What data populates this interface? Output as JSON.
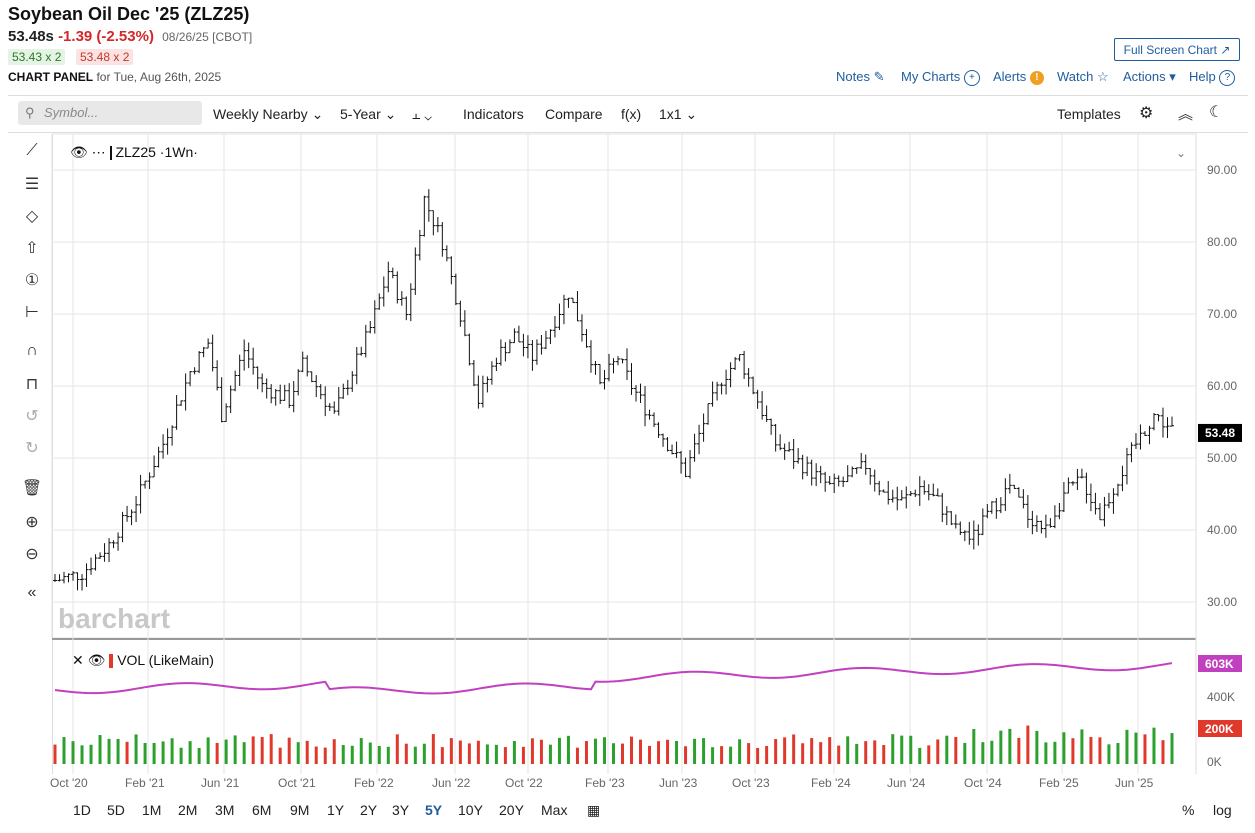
{
  "header": {
    "title": "Soybean Oil Dec '25 (ZLZ25)",
    "last": "53.48s",
    "change": "-1.39 (-2.53%)",
    "date_exchange": "08/26/25 [CBOT]",
    "bid": "53.43 x 2",
    "ask": "53.48 x 2",
    "panel_label": "CHART PANEL",
    "panel_date": "for Tue, Aug 26th, 2025",
    "fullscreen": "Full Screen Chart"
  },
  "links": {
    "notes": "Notes",
    "my_charts": "My Charts",
    "alerts": "Alerts",
    "watch": "Watch",
    "actions": "Actions",
    "help": "Help"
  },
  "toolbar": {
    "search_placeholder": "Symbol...",
    "period": "Weekly Nearby",
    "range": "5-Year",
    "indicators": "Indicators",
    "compare": "Compare",
    "fx": "f(x)",
    "layout": "1x1",
    "templates": "Templates"
  },
  "legend": {
    "price": "ZLZ25 ·1Wn·",
    "volume": "VOL (LikeMain)"
  },
  "watermark": "barchart",
  "bottom_ranges": [
    "1D",
    "5D",
    "1M",
    "2M",
    "3M",
    "6M",
    "9M",
    "1Y",
    "2Y",
    "3Y",
    "5Y",
    "10Y",
    "20Y",
    "Max"
  ],
  "active_range": "5Y",
  "bottom_right": {
    "pct": "%",
    "log": "log"
  },
  "colors": {
    "up": "#2ca02c",
    "down": "#e0392b",
    "avg": "#c040c0",
    "accent": "#1f5d9e"
  },
  "chart_data": {
    "type": "ohlc",
    "symbol": "ZLZ25",
    "interval": "weekly",
    "last_value": "53.48",
    "ylim": [
      25,
      95
    ],
    "y_ticks": [
      "90.00",
      "80.00",
      "70.00",
      "60.00",
      "50.00",
      "40.00",
      "30.00"
    ],
    "x_ticks": [
      "Oct '20",
      "Feb '21",
      "Jun '21",
      "Oct '21",
      "Feb '22",
      "Jun '22",
      "Oct '22",
      "Feb '23",
      "Jun '23",
      "Oct '23",
      "Feb '24",
      "Jun '24",
      "Oct '24",
      "Feb '25",
      "Jun '25"
    ],
    "close_path": [
      [
        0,
        33
      ],
      [
        6,
        34
      ],
      [
        12,
        38
      ],
      [
        18,
        44
      ],
      [
        24,
        52
      ],
      [
        30,
        62
      ],
      [
        34,
        66
      ],
      [
        37,
        56
      ],
      [
        42,
        65
      ],
      [
        46,
        60
      ],
      [
        52,
        58
      ],
      [
        55,
        63
      ],
      [
        58,
        60
      ],
      [
        62,
        56
      ],
      [
        66,
        62
      ],
      [
        70,
        68
      ],
      [
        74,
        76
      ],
      [
        78,
        70
      ],
      [
        82,
        86
      ],
      [
        86,
        80
      ],
      [
        90,
        70
      ],
      [
        94,
        58
      ],
      [
        98,
        64
      ],
      [
        102,
        67
      ],
      [
        106,
        64
      ],
      [
        110,
        68
      ],
      [
        114,
        73
      ],
      [
        118,
        66
      ],
      [
        121,
        60
      ],
      [
        125,
        64
      ],
      [
        128,
        60
      ],
      [
        132,
        56
      ],
      [
        136,
        52
      ],
      [
        140,
        48
      ],
      [
        144,
        55
      ],
      [
        148,
        61
      ],
      [
        152,
        64
      ],
      [
        156,
        58
      ],
      [
        160,
        52
      ],
      [
        164,
        50
      ],
      [
        168,
        48
      ],
      [
        172,
        46
      ],
      [
        176,
        47
      ],
      [
        180,
        49
      ],
      [
        184,
        45
      ],
      [
        188,
        44
      ],
      [
        192,
        46
      ],
      [
        196,
        44
      ],
      [
        200,
        40
      ],
      [
        204,
        39
      ],
      [
        208,
        43
      ],
      [
        212,
        46
      ],
      [
        216,
        42
      ],
      [
        220,
        40
      ],
      [
        224,
        45
      ],
      [
        228,
        47
      ],
      [
        232,
        42
      ],
      [
        236,
        47
      ],
      [
        240,
        52
      ],
      [
        244,
        56
      ],
      [
        248,
        54
      ]
    ],
    "volume_series": {
      "name": "VOL (LikeMain)",
      "y_ticks": [
        "400K",
        "0K"
      ],
      "last_avg": "603K",
      "last_bar": "200K"
    }
  }
}
